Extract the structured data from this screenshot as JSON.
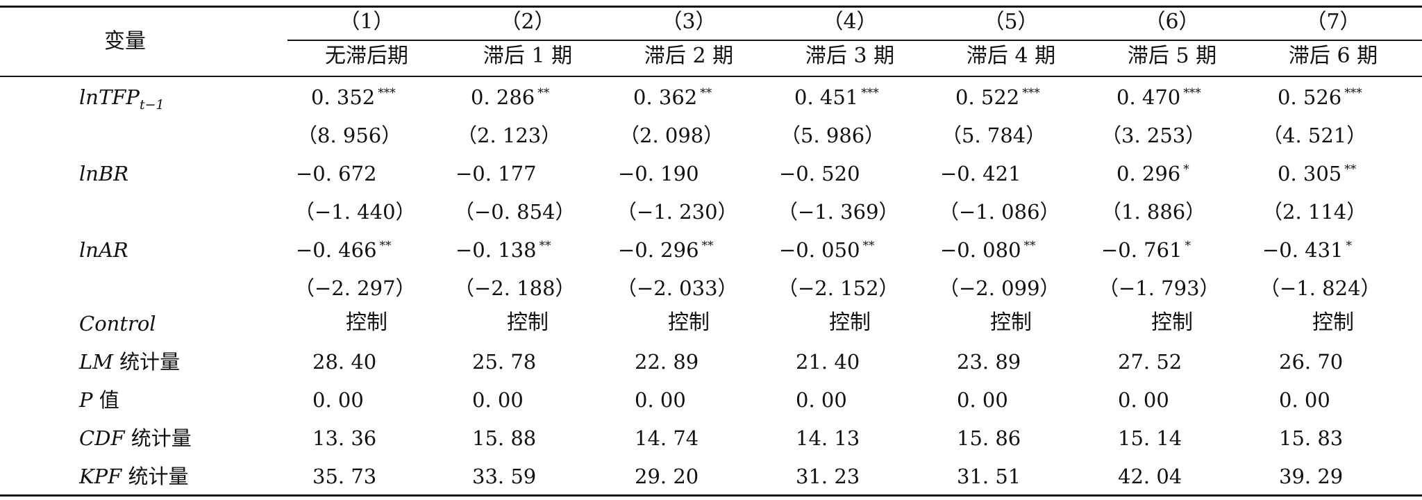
{
  "header": {
    "var_label": "变量",
    "columns": [
      {
        "num": "（1）",
        "label": "无滞后期"
      },
      {
        "num": "（2）",
        "label": "滞后 1 期"
      },
      {
        "num": "（3）",
        "label": "滞后 2 期"
      },
      {
        "num": "（4）",
        "label": "滞后 3 期"
      },
      {
        "num": "（5）",
        "label": "滞后 4 期"
      },
      {
        "num": "（6）",
        "label": "滞后 5 期"
      },
      {
        "num": "（7）",
        "label": "滞后 6 期"
      }
    ]
  },
  "rows": [
    {
      "label": "lnTFP",
      "label_sub": "t−1",
      "coef": [
        "0. 352",
        "0. 286",
        "0. 362",
        "0. 451",
        "0. 522",
        "0. 470",
        "0. 526"
      ],
      "sig": [
        "***",
        "**",
        "**",
        "***",
        "***",
        "***",
        "***"
      ],
      "t": [
        "（8. 956）",
        "（2. 123）",
        "（2. 098）",
        "（5. 986）",
        "（5. 784）",
        "（3. 253）",
        "（4. 521）"
      ]
    },
    {
      "label": "lnBR",
      "coef": [
        "−0. 672",
        "−0. 177",
        "−0. 190",
        "−0. 520",
        "−0. 421",
        "0. 296",
        "0. 305"
      ],
      "sig": [
        "",
        "",
        "",
        "",
        "",
        "*",
        "**"
      ],
      "t": [
        "（−1. 440）",
        "（−0. 854）",
        "（−1. 230）",
        "（−1. 369）",
        "（−1. 086）",
        "（1. 886）",
        "（2. 114）"
      ]
    },
    {
      "label": "lnAR",
      "coef": [
        "−0. 466",
        "−0. 138",
        "−0. 296",
        "−0. 050",
        "−0. 080",
        "−0. 761",
        "−0. 431"
      ],
      "sig": [
        "**",
        "**",
        "**",
        "**",
        "**",
        "*",
        "*"
      ],
      "t": [
        "（−2. 297）",
        "（−2. 188）",
        "（−2. 033）",
        "（−2. 152）",
        "（−2. 099）",
        "（−1. 793）",
        "（−1. 824）"
      ]
    }
  ],
  "control": {
    "label": "Control",
    "values": [
      "控制",
      "控制",
      "控制",
      "控制",
      "控制",
      "控制",
      "控制"
    ]
  },
  "stats": [
    {
      "label_it": "LM",
      "label_cn": " 统计量",
      "values": [
        "28. 40",
        "25. 78",
        "22. 89",
        "21. 40",
        "23. 89",
        "27. 52",
        "26. 70"
      ]
    },
    {
      "label_it": "P",
      "label_cn": " 值",
      "values": [
        "0. 00",
        "0. 00",
        "0. 00",
        "0. 00",
        "0. 00",
        "0. 00",
        "0. 00"
      ]
    },
    {
      "label_it": "CDF",
      "label_cn": " 统计量",
      "values": [
        "13. 36",
        "15. 88",
        "14. 74",
        "14. 13",
        "15. 86",
        "15. 14",
        "15. 83"
      ]
    },
    {
      "label_it": "KPF",
      "label_cn": " 统计量",
      "values": [
        "35. 73",
        "33. 59",
        "29. 20",
        "31. 23",
        "31. 51",
        "42. 04",
        "39. 29"
      ]
    }
  ]
}
